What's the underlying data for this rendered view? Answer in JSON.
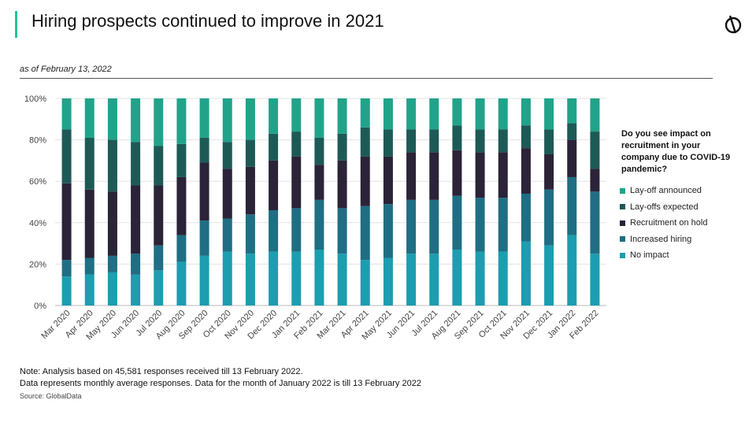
{
  "header": {
    "title": "Hiring prospects continued to improve in 2021",
    "subtitle": "as of February 13, 2022",
    "logo_icon": "globaldata-logo-icon"
  },
  "legend": {
    "title": "Do you see impact on recruitment in your company due to COVID-19 pandemic?",
    "items": [
      {
        "label": "Lay-off announced",
        "color": "#21a38a"
      },
      {
        "label": "Lay-offs expected",
        "color": "#1d5a56"
      },
      {
        "label": "Recruitment on hold",
        "color": "#2b2338"
      },
      {
        "label": "Increased hiring",
        "color": "#1f6e83"
      },
      {
        "label": "No impact",
        "color": "#1c9db0"
      }
    ]
  },
  "footer": {
    "note1": "Note: Analysis based on 45,581 responses received till 13 February 2022.",
    "note2": "Data represents monthly average responses. Data for the month of January 2022 is till 13 February 2022",
    "source": "Source: GlobalData"
  },
  "chart_data": {
    "type": "bar",
    "stacked": true,
    "ylim": [
      0,
      100
    ],
    "yticks": [
      "0%",
      "20%",
      "40%",
      "60%",
      "80%",
      "100%"
    ],
    "categories": [
      "Mar 2020",
      "Apr 2020",
      "May 2020",
      "Jun 2020",
      "Jul 2020",
      "Aug 2020",
      "Sep 2020",
      "Oct 2020",
      "Nov 2020",
      "Dec 2020",
      "Jan 2021",
      "Feb 2021",
      "Mar 2021",
      "Apr 2021",
      "May 2021",
      "Jun 2021",
      "Jul 2021",
      "Aug 2021",
      "Sep 2021",
      "Oct 2021",
      "Nov 2021",
      "Dec 2021",
      "Jan 2022",
      "Feb 2022"
    ],
    "series": [
      {
        "name": "No impact",
        "color": "#1c9db0",
        "values": [
          14,
          15,
          16,
          15,
          17,
          21,
          24,
          26,
          25,
          26,
          26,
          27,
          25,
          22,
          23,
          25,
          25,
          27,
          26,
          26,
          31,
          29,
          34,
          25
        ]
      },
      {
        "name": "Increased hiring",
        "color": "#1f6e83",
        "values": [
          8,
          8,
          8,
          10,
          12,
          13,
          17,
          16,
          19,
          20,
          21,
          24,
          22,
          26,
          26,
          26,
          26,
          26,
          26,
          26,
          23,
          27,
          28,
          30
        ]
      },
      {
        "name": "Recruitment on hold",
        "color": "#2b2338",
        "values": [
          37,
          33,
          31,
          33,
          29,
          28,
          28,
          24,
          23,
          24,
          25,
          17,
          23,
          24,
          23,
          23,
          23,
          22,
          22,
          22,
          22,
          17,
          18,
          11
        ]
      },
      {
        "name": "Lay-offs expected",
        "color": "#1d5a56",
        "values": [
          26,
          25,
          25,
          21,
          19,
          16,
          12,
          13,
          13,
          13,
          12,
          13,
          13,
          14,
          13,
          11,
          11,
          12,
          11,
          11,
          11,
          12,
          8,
          18
        ]
      },
      {
        "name": "Lay-off announced",
        "color": "#21a38a",
        "values": [
          15,
          19,
          20,
          21,
          23,
          22,
          19,
          21,
          20,
          17,
          16,
          19,
          17,
          14,
          15,
          15,
          15,
          13,
          15,
          15,
          13,
          15,
          12,
          16
        ]
      }
    ]
  }
}
